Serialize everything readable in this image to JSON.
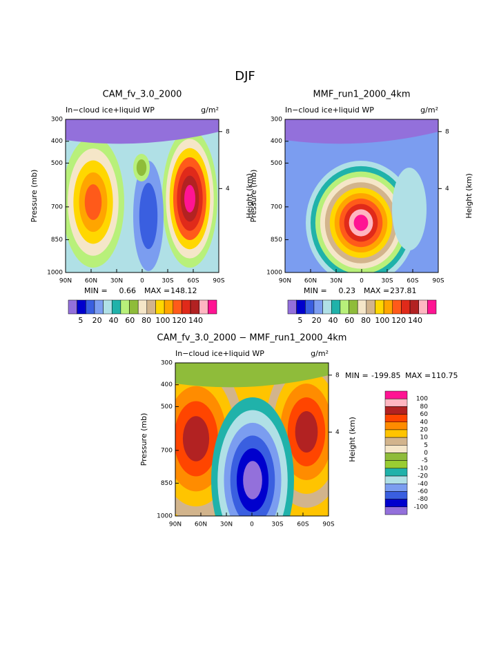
{
  "page_title": "DJF",
  "chart_data": [
    {
      "type": "contour",
      "title": "CAM_fv_3.0_2000",
      "subtitle": "In−cloud ice+liquid WP",
      "units": "g/m²",
      "ylabel": "Pressure (mb)",
      "y2label": "Height (km)",
      "xlim": [
        90,
        -90
      ],
      "xticks": [
        {
          "value": 90,
          "label": "90N"
        },
        {
          "value": 60,
          "label": "60N"
        },
        {
          "value": 30,
          "label": "30N"
        },
        0,
        {
          "value": -30,
          "label": "30S"
        },
        {
          "value": -60,
          "label": "60S"
        },
        {
          "value": -90,
          "label": "90S"
        }
      ],
      "ylim": [
        1000,
        300
      ],
      "yticks": [
        300,
        400,
        500,
        700,
        850,
        1000
      ],
      "y2ticks": [
        8,
        4
      ],
      "min_label": "MIN =",
      "min": 0.66,
      "max_label": "MAX =",
      "max": 148.12,
      "colorbar": {
        "orientation": "horizontal",
        "colors": [
          "#9370db",
          "#0000cd",
          "#3a5fe0",
          "#7b9df0",
          "#b0e0e6",
          "#20b2aa",
          "#b8f07a",
          "#8fbc3a",
          "#f5e6c8",
          "#d2b48c",
          "#ffd700",
          "#ffa500",
          "#ff5a1a",
          "#e02a1a",
          "#b22222",
          "#ffb6c1",
          "#ff1493"
        ],
        "labels": [
          5,
          20,
          40,
          60,
          80,
          100,
          120,
          140
        ]
      }
    },
    {
      "type": "contour",
      "title": "MMF_run1_2000_4km",
      "subtitle": "In−cloud ice+liquid WP",
      "units": "g/m²",
      "ylabel": "Pressure (mb)",
      "y2label": "Height (km)",
      "xlim": [
        90,
        -90
      ],
      "xticks": [
        {
          "value": 90,
          "label": "90N"
        },
        {
          "value": 60,
          "label": "60N"
        },
        {
          "value": 30,
          "label": "30N"
        },
        0,
        {
          "value": -30,
          "label": "30S"
        },
        {
          "value": -60,
          "label": "60S"
        },
        {
          "value": -90,
          "label": "90S"
        }
      ],
      "ylim": [
        1000,
        300
      ],
      "yticks": [
        300,
        400,
        500,
        700,
        850,
        1000
      ],
      "y2ticks": [
        8,
        4
      ],
      "min_label": "MIN =",
      "min": 0.23,
      "max_label": "MAX =",
      "max": 237.81,
      "colorbar": {
        "orientation": "horizontal",
        "colors": [
          "#9370db",
          "#0000cd",
          "#3a5fe0",
          "#7b9df0",
          "#b0e0e6",
          "#20b2aa",
          "#b8f07a",
          "#8fbc3a",
          "#f5e6c8",
          "#d2b48c",
          "#ffd700",
          "#ffa500",
          "#ff5a1a",
          "#e02a1a",
          "#b22222",
          "#ffb6c1",
          "#ff1493"
        ],
        "labels": [
          5,
          20,
          40,
          60,
          80,
          100,
          120,
          140
        ]
      }
    },
    {
      "type": "contour",
      "title": "CAM_fv_3.0_2000 − MMF_run1_2000_4km",
      "subtitle": "In−cloud ice+liquid WP",
      "units": "g/m²",
      "ylabel": "Pressure (mb)",
      "y2label": "Height (km)",
      "xlim": [
        90,
        -90
      ],
      "xticks": [
        {
          "value": 90,
          "label": "90N"
        },
        {
          "value": 60,
          "label": "60N"
        },
        {
          "value": 30,
          "label": "30N"
        },
        0,
        {
          "value": -30,
          "label": "30S"
        },
        {
          "value": -60,
          "label": "60S"
        },
        {
          "value": -90,
          "label": "90S"
        }
      ],
      "ylim": [
        1000,
        300
      ],
      "yticks": [
        300,
        400,
        500,
        700,
        850,
        1000
      ],
      "y2ticks": [
        8,
        4
      ],
      "min_label": "MIN =",
      "min": -199.85,
      "max_label": "MAX =",
      "max": 110.75,
      "colorbar": {
        "orientation": "vertical",
        "colors": [
          "#ff1493",
          "#ffb6c1",
          "#b22222",
          "#ff4500",
          "#ff8c00",
          "#ffc400",
          "#d2b48c",
          "#f5e6c8",
          "#8fbc3a",
          "#9acd32",
          "#20b2aa",
          "#b0e0e6",
          "#7b9df0",
          "#3a5fe0",
          "#0000cd",
          "#9370db"
        ],
        "labels": [
          100,
          80,
          60,
          40,
          20,
          10,
          5,
          0,
          -5,
          -10,
          -20,
          -40,
          -60,
          -80,
          -100
        ]
      }
    }
  ]
}
